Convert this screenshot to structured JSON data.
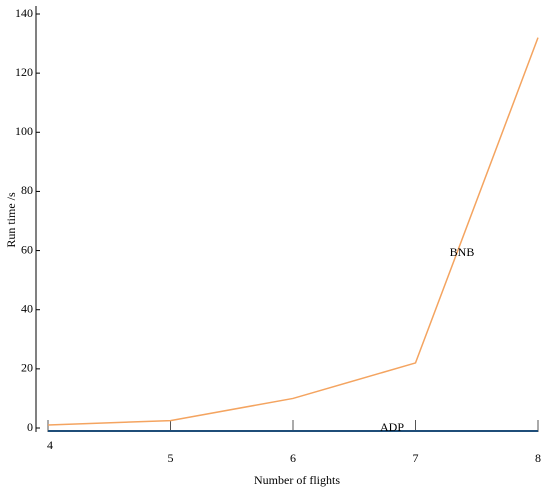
{
  "chart_data": {
    "type": "line",
    "xlabel": "Number of flights",
    "ylabel": "Run time /s",
    "x": [
      4,
      5,
      6,
      7,
      8
    ],
    "series": [
      {
        "name": "BNB",
        "color": "#f4a460",
        "values": [
          1,
          2.5,
          10,
          22,
          132
        ]
      },
      {
        "name": "ADP",
        "color": "#1f4e79",
        "values": [
          -1,
          -1,
          -1,
          -1,
          -1
        ]
      }
    ],
    "xlim": [
      4,
      8
    ],
    "xticks": [
      4,
      5,
      6,
      7,
      8
    ],
    "ylim": [
      0,
      140
    ],
    "yticks": [
      0,
      20,
      40,
      60,
      80,
      100,
      120,
      140
    ]
  }
}
